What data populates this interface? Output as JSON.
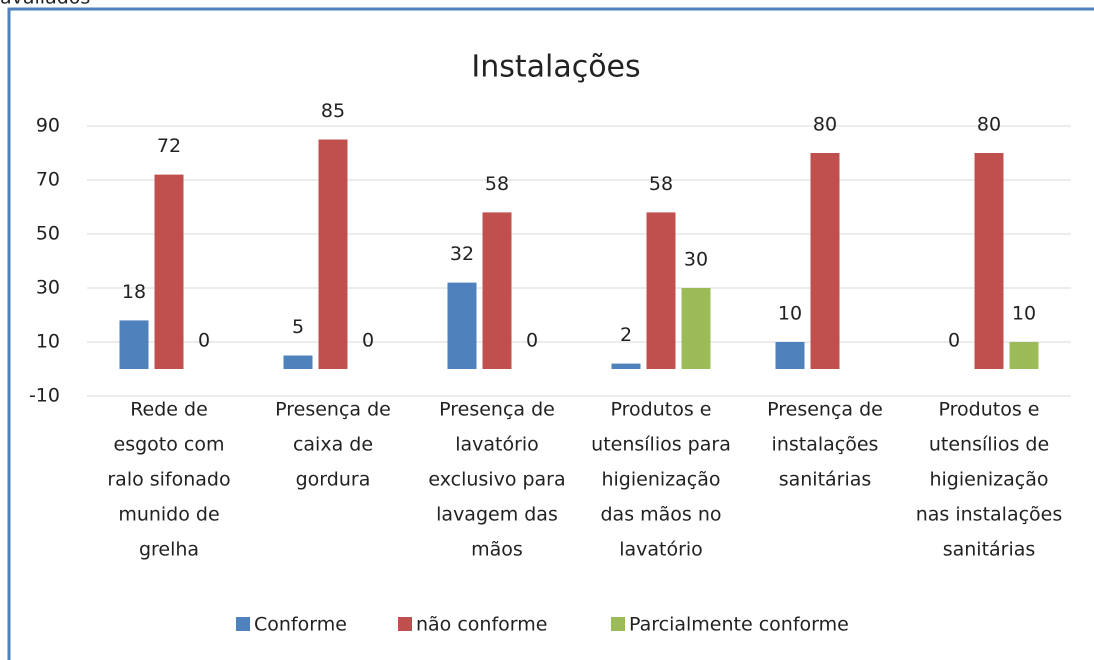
{
  "caption": "avaliados",
  "chart_data": {
    "type": "bar",
    "title": "Instalações",
    "categories": [
      [
        "Rede de",
        "esgoto com",
        "ralo sifonado",
        "munido de",
        "grelha"
      ],
      [
        "Presença de",
        "caixa de",
        "gordura"
      ],
      [
        "Presença de",
        "lavatório",
        "exclusivo para",
        "lavagem das",
        "mãos"
      ],
      [
        "Produtos e",
        "utensílios para",
        "higienização",
        "das mãos no",
        "lavatório"
      ],
      [
        "Presença de",
        "instalações",
        "sanitárias"
      ],
      [
        "Produtos e",
        "utensílios  de",
        "higienização",
        "nas instalações",
        "sanitárias"
      ]
    ],
    "series": [
      {
        "name": "Conforme",
        "color": "#4f81bd",
        "values": [
          18,
          5,
          32,
          2,
          10,
          0
        ]
      },
      {
        "name": "não conforme",
        "color": "#c0504d",
        "values": [
          72,
          85,
          58,
          58,
          80,
          80
        ]
      },
      {
        "name": "Parcialmente conforme",
        "color": "#9bbb59",
        "values": [
          0,
          0,
          0,
          30,
          null,
          10
        ]
      }
    ],
    "ylim": [
      -10,
      90
    ],
    "yticks": [
      -10,
      10,
      30,
      50,
      70,
      90
    ],
    "grid": true,
    "legend": "bottom"
  }
}
